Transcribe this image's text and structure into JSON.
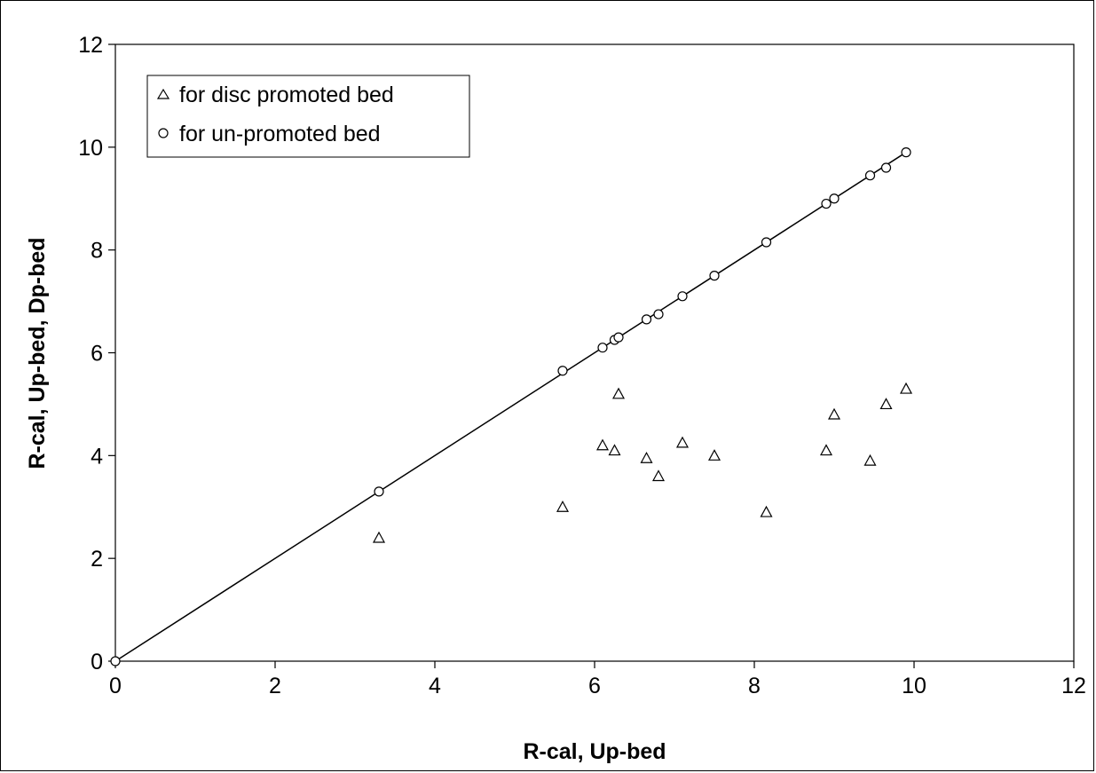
{
  "chart_data": {
    "type": "scatter",
    "xlabel": "R-cal, Up-bed",
    "ylabel": "R-cal, Up-bed, Dp-bed",
    "xlim": [
      0,
      12
    ],
    "ylim": [
      0,
      12
    ],
    "xticks": [
      "0",
      "2",
      "4",
      "6",
      "8",
      "10",
      "12"
    ],
    "yticks": [
      "0",
      "2",
      "4",
      "6",
      "8",
      "10",
      "12"
    ],
    "grid": false,
    "legend_position": "top-left",
    "series": [
      {
        "name": "for disc promoted bed",
        "marker": "triangle",
        "x": [
          3.3,
          5.6,
          6.1,
          6.25,
          6.3,
          6.65,
          6.8,
          7.1,
          7.5,
          8.15,
          8.9,
          9.0,
          9.45,
          9.65,
          9.9
        ],
        "y": [
          2.4,
          3.0,
          4.2,
          4.1,
          5.2,
          3.95,
          3.6,
          4.25,
          4.0,
          2.9,
          4.1,
          4.8,
          3.9,
          5.0,
          5.3
        ]
      },
      {
        "name": "for un-promoted bed",
        "marker": "circle",
        "x": [
          0.0,
          3.3,
          5.6,
          6.1,
          6.25,
          6.3,
          6.65,
          6.8,
          7.1,
          7.5,
          8.15,
          8.9,
          9.0,
          9.45,
          9.65,
          9.9
        ],
        "y": [
          0.0,
          3.3,
          5.65,
          6.1,
          6.25,
          6.3,
          6.65,
          6.75,
          7.1,
          7.5,
          8.15,
          8.9,
          9.0,
          9.45,
          9.6,
          9.9
        ]
      }
    ],
    "reference_line": {
      "x": [
        0,
        9.9
      ],
      "y": [
        0,
        9.9
      ]
    }
  }
}
